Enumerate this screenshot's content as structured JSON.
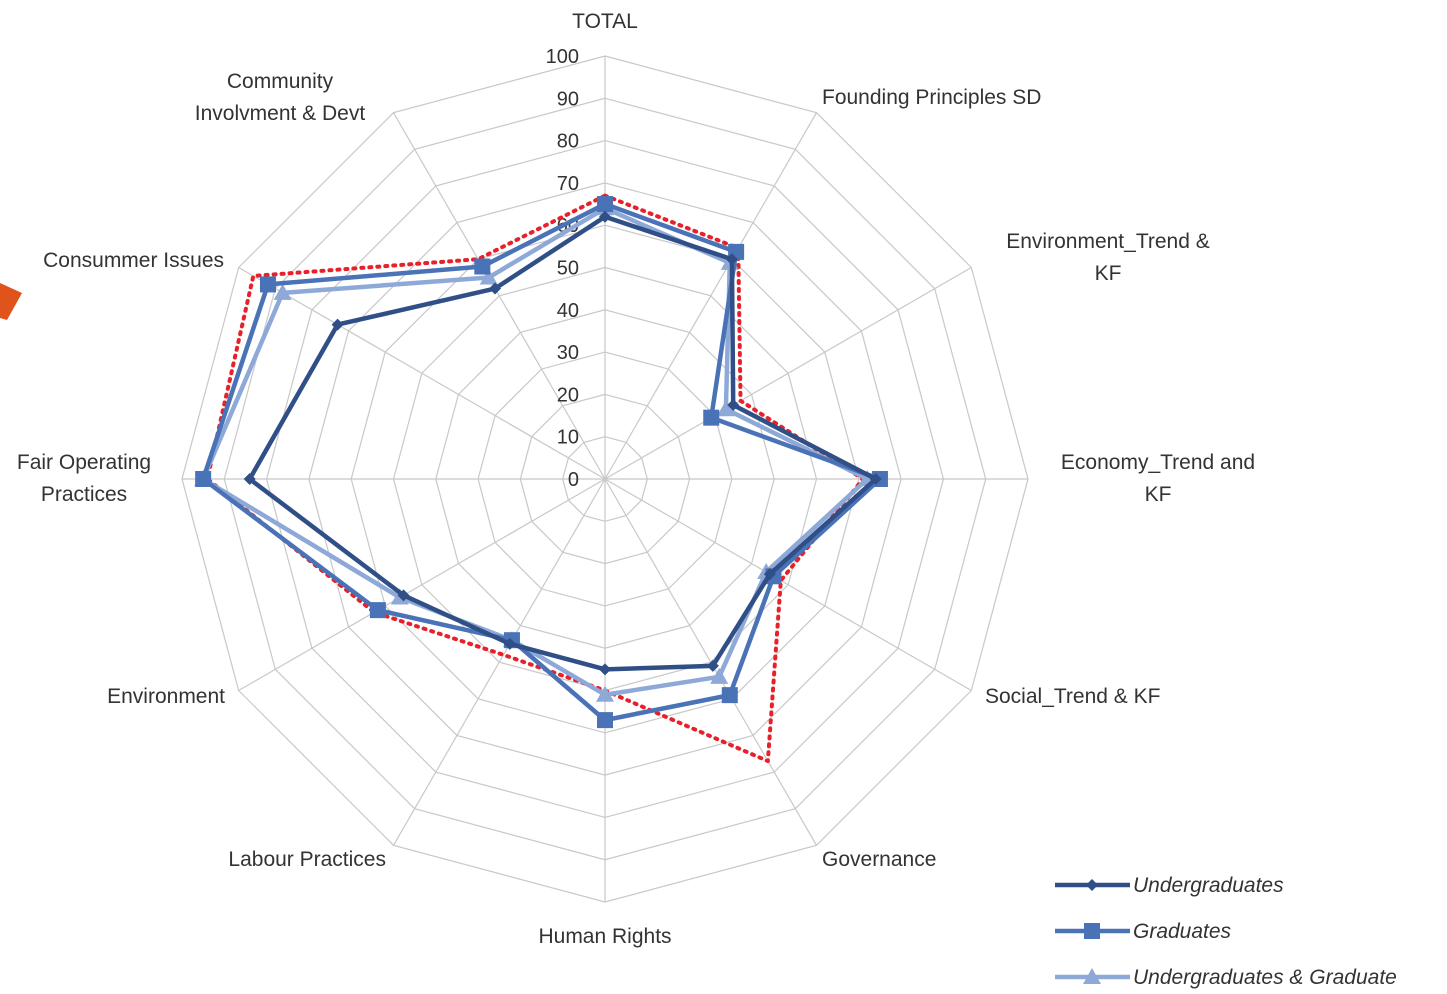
{
  "chart_data": {
    "type": "radar",
    "axes": [
      [
        "TOTAL"
      ],
      [
        "Founding Principles SD"
      ],
      [
        "Environment_Trend &",
        "KF"
      ],
      [
        "Economy_Trend and",
        "KF"
      ],
      [
        "Social_Trend & KF"
      ],
      [
        "Governance"
      ],
      [
        "Human Rights"
      ],
      [
        "Labour Practices"
      ],
      [
        "Environment"
      ],
      [
        "Fair Operating",
        "Practices"
      ],
      [
        "Consummer Issues"
      ],
      [
        "Community",
        "Involvment & Devt"
      ]
    ],
    "rlim": [
      0,
      100
    ],
    "ticks": [
      "0",
      "10",
      "20",
      "30",
      "40",
      "50",
      "60",
      "70",
      "80",
      "90",
      "100"
    ],
    "grid": true,
    "legend_position": "bottom-right",
    "series": [
      {
        "name": "Undergraduates",
        "color": "#2f4f86",
        "marker": "diamond",
        "values": [
          62,
          60,
          35,
          64,
          45,
          51,
          45,
          45,
          55,
          84,
          73,
          52
        ]
      },
      {
        "name": "Graduates",
        "color": "#4a72b6",
        "marker": "square",
        "values": [
          65,
          62,
          29,
          65,
          46,
          59,
          57,
          44,
          62,
          95,
          92,
          58
        ]
      },
      {
        "name": "Undergraduates & Graduate",
        "color": "#8ea9d8",
        "marker": "triangle",
        "values": [
          64,
          59,
          33,
          62,
          44,
          54,
          51,
          44,
          56,
          95,
          88,
          55
        ]
      },
      {
        "name": "",
        "color": "#e8202a",
        "marker": "none",
        "dotted": true,
        "values": [
          67,
          63,
          37,
          61,
          48,
          77,
          50,
          48,
          63,
          94,
          96,
          60
        ]
      }
    ]
  }
}
